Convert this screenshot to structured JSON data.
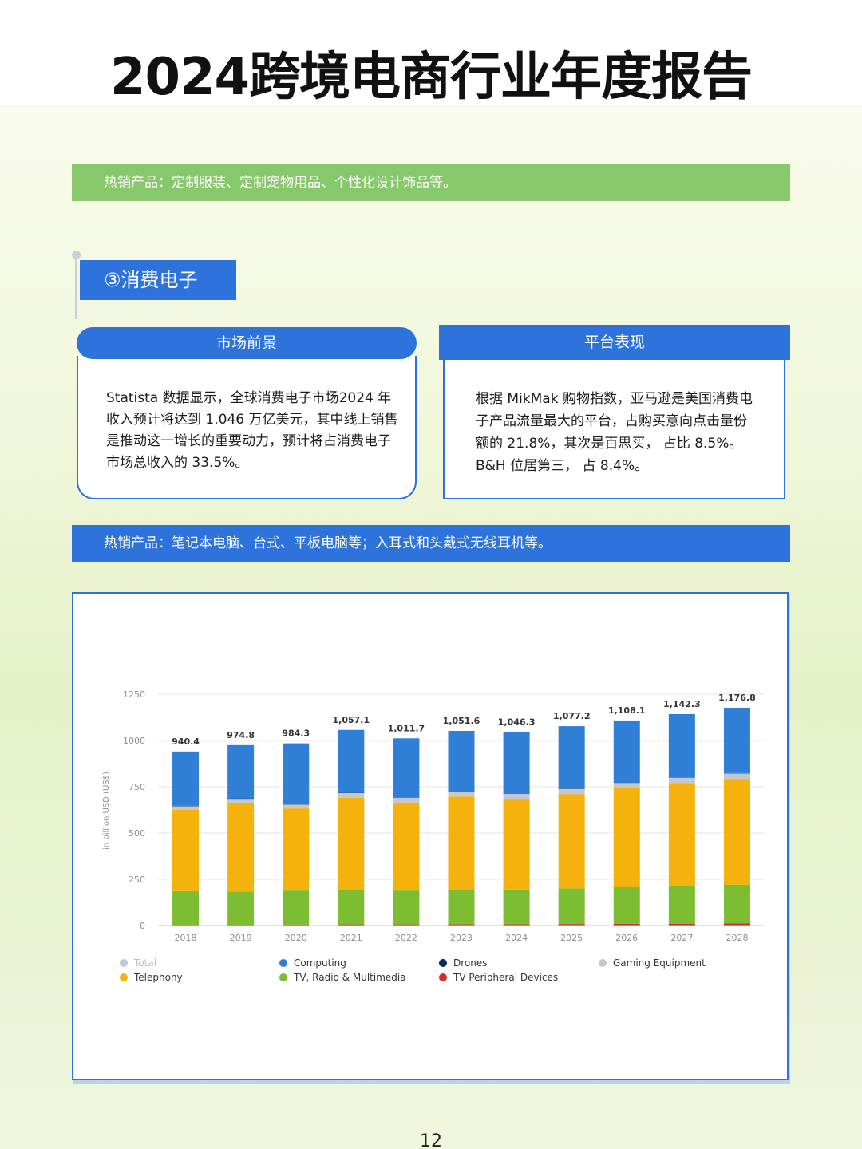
{
  "document": {
    "title": "2024跨境电商行业年度报告",
    "page_number": "12"
  },
  "banner_top": {
    "text": "热销产品：定制服装、定制宠物用品、个性化设计饰品等。"
  },
  "section": {
    "label": "③消费电子"
  },
  "cards": {
    "market": {
      "title": "市场前景",
      "body": "Statista 数据显示，全球消费电子市场2024 年收入预计将达到 1.046 万亿美元，其中线上销售是推动这一增长的重要动力，预计将占消费电子市场总收入的 33.5%。"
    },
    "platform": {
      "title": "平台表现",
      "body": "根据 MikMak 购物指数，亚马逊是美国消费电子产品流量最大的平台，占购买意向点击量份额的 21.8%，其次是百思买， 占比 8.5%。B&H 位居第三， 占 8.4%。"
    }
  },
  "banner_bottom": {
    "text": "热销产品：笔记本电脑、台式、平板电脑等；入耳式和头戴式无线耳机等。"
  },
  "chart_data": {
    "type": "bar",
    "stacked": true,
    "categories": [
      "2018",
      "2019",
      "2020",
      "2021",
      "2022",
      "2023",
      "2024",
      "2025",
      "2026",
      "2027",
      "2028"
    ],
    "totals": [
      940.4,
      974.8,
      984.3,
      1057.1,
      1011.7,
      1051.6,
      1046.3,
      1077.2,
      1108.1,
      1142.3,
      1176.8
    ],
    "total_labels": [
      "940.4",
      "974.8",
      "984.3",
      "1,057.1",
      "1,011.7",
      "1,051.6",
      "1,046.3",
      "1,077.2",
      "1,108.1",
      "1,142.3",
      "1,176.8"
    ],
    "ylabel": "in billion USD (US$)",
    "ylim": [
      0,
      1250
    ],
    "yticks": [
      "0",
      "250",
      "500",
      "750",
      "1000",
      "1250"
    ],
    "grid": true,
    "legend_position": "bottom",
    "series": [
      {
        "name": "TV Peripheral Devices",
        "color": "#d62b2b",
        "values": [
          4,
          4,
          5,
          6,
          6,
          7,
          7,
          8,
          9,
          10,
          11
        ]
      },
      {
        "name": "TV, Radio & Multimedia",
        "color": "#7cbd31",
        "values": [
          182,
          180,
          184,
          185,
          183,
          185,
          188,
          193,
          198,
          205,
          210
        ]
      },
      {
        "name": "Telephony",
        "color": "#f5b10c",
        "values": [
          440,
          480,
          444,
          500,
          475,
          505,
          490,
          508,
          535,
          555,
          570
        ]
      },
      {
        "name": "Gaming Equipment",
        "color": "#c4c8cc",
        "values": [
          20,
          22,
          22,
          26,
          28,
          26,
          28,
          30,
          30,
          30,
          32
        ]
      },
      {
        "name": "Drones",
        "color": "#0a2a55",
        "values": [
          1,
          1,
          1,
          1,
          1,
          1,
          1,
          1,
          1,
          1,
          1
        ]
      },
      {
        "name": "Computing",
        "color": "#2f7fd6",
        "values": [
          293.4,
          287.8,
          328.3,
          339.1,
          318.7,
          327.6,
          332.3,
          337.2,
          335.1,
          341.3,
          352.8
        ]
      }
    ],
    "legend": [
      {
        "name": "Total",
        "color": "#c4c8cc"
      },
      {
        "name": "Computing",
        "color": "#2f7fd6"
      },
      {
        "name": "Drones",
        "color": "#0a2a55"
      },
      {
        "name": "Gaming Equipment",
        "color": "#c4c8cc"
      },
      {
        "name": "Telephony",
        "color": "#f5b10c"
      },
      {
        "name": "TV, Radio & Multimedia",
        "color": "#7cbd31"
      },
      {
        "name": "TV Peripheral Devices",
        "color": "#d62b2b"
      }
    ]
  }
}
